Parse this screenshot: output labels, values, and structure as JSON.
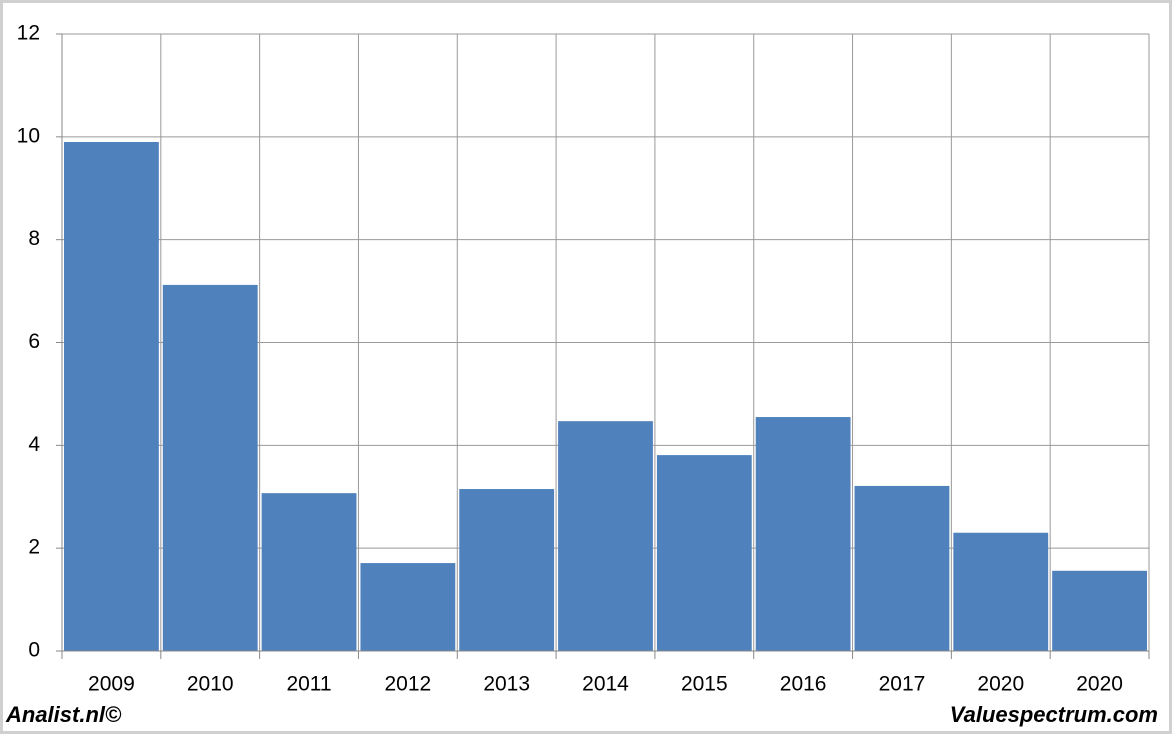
{
  "chart_data": {
    "type": "bar",
    "categories": [
      "2009",
      "2010",
      "2011",
      "2012",
      "2013",
      "2014",
      "2015",
      "2016",
      "2017",
      "2020",
      "2020"
    ],
    "values": [
      9.9,
      7.12,
      3.07,
      1.71,
      3.15,
      4.47,
      3.81,
      4.55,
      3.21,
      2.3,
      1.56
    ],
    "color": "#4f81bd",
    "ylim": [
      0,
      12
    ],
    "yticks": [
      0,
      2,
      4,
      6,
      8,
      10,
      12
    ],
    "grid": true,
    "footer_left": "Analist.nl©",
    "footer_right": "Valuespectrum.com"
  }
}
